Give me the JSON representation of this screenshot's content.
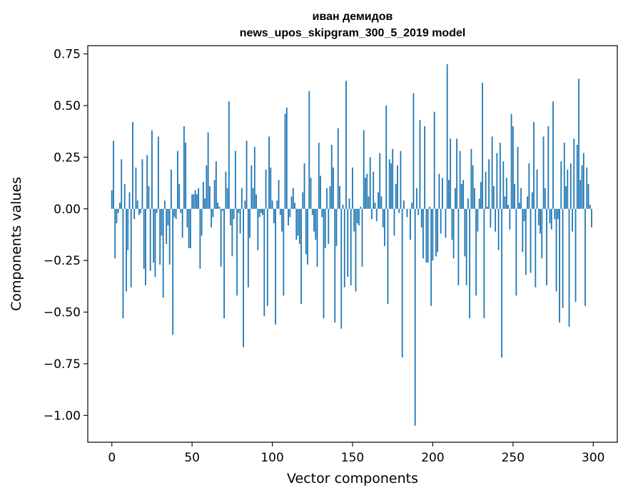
{
  "chart_data": {
    "type": "bar",
    "title": "иван демидов",
    "subtitle": "news_upos_skipgram_300_5_2019 model",
    "xlabel": "Vector components",
    "ylabel": "Components values",
    "xlim": [
      -15,
      315
    ],
    "ylim": [
      -1.13,
      0.79
    ],
    "xticks": [
      0,
      50,
      100,
      150,
      200,
      250,
      300
    ],
    "yticks": [
      -1.0,
      -0.75,
      -0.5,
      -0.25,
      0.0,
      0.25,
      0.5,
      0.75
    ],
    "ytick_labels": [
      "−1.00",
      "−0.75",
      "−0.50",
      "−0.25",
      "0.00",
      "0.25",
      "0.50",
      "0.75"
    ],
    "xtick_labels": [
      "0",
      "50",
      "100",
      "150",
      "200",
      "250",
      "300"
    ],
    "grid": false,
    "bar_color": "#1f77b4",
    "x": "0..299",
    "values": [
      0.09,
      0.33,
      -0.24,
      -0.07,
      -0.02,
      0.03,
      0.24,
      -0.53,
      0.12,
      -0.4,
      -0.2,
      0.08,
      -0.38,
      0.42,
      -0.05,
      0.2,
      0.04,
      -0.03,
      -0.02,
      0.24,
      -0.29,
      -0.37,
      0.26,
      0.11,
      -0.3,
      0.38,
      -0.26,
      -0.33,
      -0.02,
      0.35,
      -0.27,
      -0.13,
      -0.43,
      0.04,
      -0.17,
      -0.08,
      -0.27,
      0.19,
      -0.61,
      -0.04,
      -0.05,
      0.28,
      0.12,
      -0.02,
      -0.14,
      0.4,
      0.32,
      -0.09,
      -0.19,
      -0.19,
      0.07,
      0.07,
      0.09,
      0.07,
      0.1,
      -0.29,
      -0.13,
      0.13,
      0.05,
      0.21,
      0.37,
      0.11,
      -0.09,
      -0.04,
      0.14,
      0.23,
      0.03,
      0.01,
      -0.28,
      -0.01,
      -0.53,
      0.18,
      0.1,
      0.52,
      -0.08,
      -0.23,
      -0.05,
      0.28,
      -0.42,
      -0.02,
      -0.12,
      0.1,
      -0.67,
      0.04,
      0.33,
      -0.38,
      -0.14,
      0.21,
      0.1,
      0.3,
      0.07,
      -0.2,
      -0.04,
      -0.02,
      -0.03,
      -0.52,
      0.19,
      -0.47,
      0.35,
      0.2,
      0.04,
      -0.07,
      -0.56,
      0.04,
      0.14,
      -0.03,
      -0.11,
      -0.42,
      0.46,
      0.49,
      -0.08,
      -0.04,
      0.06,
      0.1,
      0.03,
      -0.15,
      -0.13,
      -0.17,
      -0.46,
      0.08,
      0.22,
      -0.22,
      -0.27,
      0.57,
      0.15,
      -0.03,
      -0.11,
      -0.15,
      -0.28,
      0.32,
      0.16,
      -0.04,
      -0.53,
      -0.19,
      0.1,
      -0.17,
      0.11,
      0.31,
      0.2,
      -0.55,
      -0.18,
      0.39,
      0.11,
      -0.58,
      0.02,
      -0.38,
      0.62,
      -0.33,
      0.05,
      -0.37,
      0.2,
      -0.11,
      -0.4,
      -0.07,
      -0.08,
      0.01,
      -0.28,
      0.38,
      0.15,
      0.17,
      0.06,
      0.25,
      -0.05,
      0.18,
      0.03,
      -0.06,
      0.08,
      0.27,
      0.06,
      -0.09,
      -0.18,
      0.5,
      -0.46,
      0.24,
      0.22,
      0.29,
      -0.13,
      0.12,
      0.21,
      -0.02,
      0.28,
      -0.72,
      0.04,
      0.0,
      -0.04,
      0.0,
      -0.15,
      0.03,
      0.56,
      -1.05,
      0.1,
      -0.03,
      0.43,
      -0.09,
      -0.24,
      0.4,
      -0.26,
      -0.26,
      0.01,
      -0.47,
      -0.25,
      0.47,
      -0.23,
      -0.21,
      0.17,
      -0.12,
      0.15,
      0.0,
      -0.14,
      0.7,
      0.14,
      0.34,
      -0.15,
      -0.24,
      0.1,
      0.34,
      -0.37,
      0.28,
      0.12,
      0.14,
      -0.23,
      -0.37,
      0.05,
      -0.53,
      0.29,
      0.21,
      0.1,
      -0.42,
      -0.11,
      0.05,
      0.13,
      0.61,
      -0.53,
      0.18,
      0.01,
      0.24,
      -0.09,
      0.35,
      0.11,
      -0.11,
      0.27,
      -0.2,
      0.32,
      -0.72,
      0.23,
      0.06,
      0.15,
      0.02,
      -0.1,
      0.46,
      0.4,
      0.12,
      -0.42,
      0.3,
      0.03,
      0.1,
      -0.21,
      -0.06,
      -0.32,
      0.06,
      0.22,
      -0.31,
      0.08,
      0.42,
      -0.38,
      0.19,
      -0.08,
      -0.12,
      -0.24,
      0.35,
      0.1,
      -0.37,
      0.4,
      -0.07,
      -0.1,
      0.52,
      -0.05,
      -0.4,
      -0.05,
      -0.55,
      0.23,
      -0.48,
      0.32,
      0.11,
      0.19,
      -0.57,
      0.22,
      -0.11,
      0.34,
      -0.45,
      0.31,
      0.63,
      0.14,
      0.21,
      0.27,
      -0.47,
      0.2,
      0.12,
      0.02,
      -0.09
    ]
  }
}
